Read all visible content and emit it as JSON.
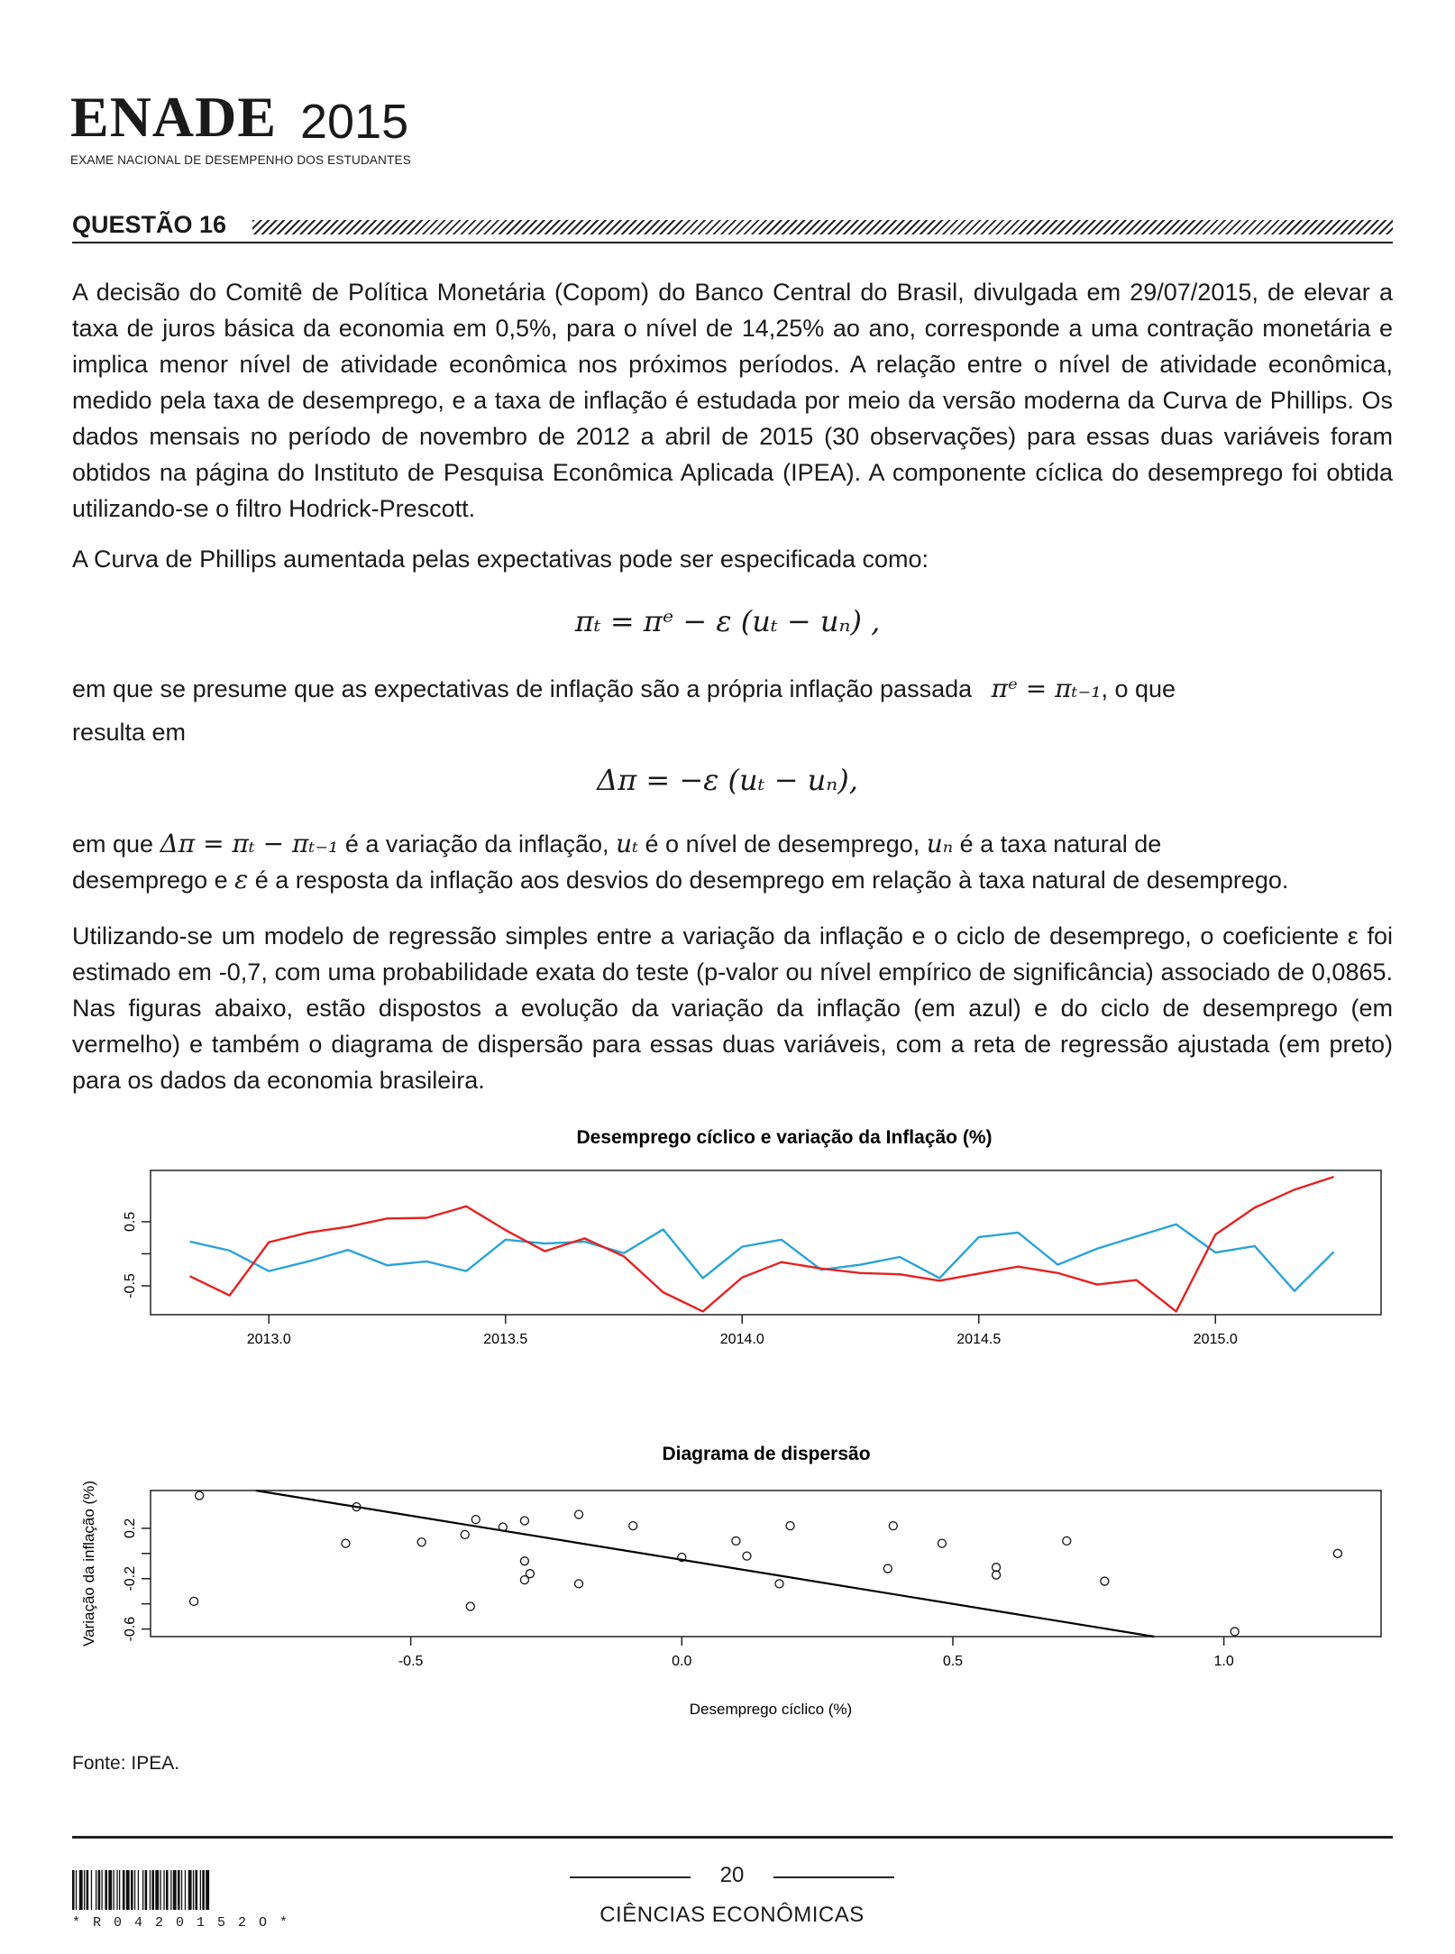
{
  "header": {
    "logo_main": "ENADE",
    "logo_year": "2015",
    "logo_subtitle": "EXAME NACIONAL DE DESEMPENHO DOS ESTUDANTES"
  },
  "question": {
    "title": "QUESTÃO 16",
    "p1": "A decisão do Comitê de Política Monetária (Copom) do Banco Central do Brasil, divulgada em 29/07/2015, de elevar a taxa de juros básica da economia em 0,5%, para o nível de 14,25% ao ano, corresponde a uma contração monetária e implica menor nível de atividade econômica nos próximos períodos. A relação entre o nível de atividade econômica, medido pela taxa de desemprego, e a taxa de inflação é estudada por meio da versão moderna da Curva de Phillips. Os dados mensais no período de novembro de 2012 a abril de 2015 (30 observações) para essas duas variáveis foram obtidos na página do Instituto de Pesquisa Econômica Aplicada (IPEA). A componente cíclica do desemprego foi obtida utilizando-se o filtro Hodrick-Prescott.",
    "p2": "A Curva de Phillips aumentada pelas expectativas pode ser especificada como:",
    "formula1": "πₜ = πᵉ − ε (uₜ − uₙ) ,",
    "p3_a": "em que se presume que as expectativas de inflação são a própria inflação passada",
    "formula_inline": "πᵉ = πₜ₋₁",
    "p3_b": ", o que",
    "p3_c": "resulta em",
    "formula2": "Δπ = −ε (uₜ − uₙ),",
    "p4_a": "em que",
    "p4_f1": "Δπ = πₜ − πₜ₋₁",
    "p4_b": "é a variação da inflação,",
    "p4_f2": "uₜ",
    "p4_c": "é o nível de desemprego,",
    "p4_f3": "uₙ",
    "p4_d": "é a taxa natural de",
    "p4_e": "desemprego e",
    "p4_f4": "ε",
    "p4_g": "é a resposta da inflação aos desvios do desemprego em relação à taxa natural de desemprego.",
    "p5": "Utilizando-se um modelo de regressão simples entre a variação da inflação e o ciclo de desemprego, o coeficiente ε foi estimado em -0,7, com uma probabilidade exata do teste (p-valor ou nível empírico de significância) associado de 0,0865. Nas figuras abaixo, estão dispostos a evolução da variação da inflação (em azul) e do ciclo de desemprego (em vermelho) e também o diagrama de dispersão para essas duas variáveis, com a reta de regressão ajustada (em preto) para os dados da economia brasileira.",
    "source": "Fonte: IPEA."
  },
  "chart_data": [
    {
      "type": "line",
      "title": "Desemprego cíclico e variação da Inflação (%)",
      "xlabel": "",
      "ylabel": "",
      "xlim": [
        2012.75,
        2015.35
      ],
      "ylim": [
        -0.95,
        1.3
      ],
      "x_ticks": [
        2013.0,
        2013.5,
        2014.0,
        2014.5,
        2015.0
      ],
      "x_tick_labels": [
        "2013.0",
        "2013.5",
        "2014.0",
        "2014.5",
        "2015.0"
      ],
      "y_ticks": [
        0.5,
        -0.5
      ],
      "y_tick_labels": [
        "0.5",
        "-0.5"
      ],
      "grid": false,
      "x": [
        2012.833,
        2012.917,
        2013.0,
        2013.083,
        2013.167,
        2013.25,
        2013.333,
        2013.417,
        2013.5,
        2013.583,
        2013.667,
        2013.75,
        2013.833,
        2013.917,
        2014.0,
        2014.083,
        2014.167,
        2014.25,
        2014.333,
        2014.417,
        2014.5,
        2014.583,
        2014.667,
        2014.75,
        2014.833,
        2014.917,
        2015.0,
        2015.083,
        2015.167,
        2015.25
      ],
      "series": [
        {
          "color": "#2aa3d6",
          "values": [
            0.19,
            0.05,
            -0.27,
            -0.12,
            0.06,
            -0.18,
            -0.12,
            -0.27,
            0.22,
            0.16,
            0.19,
            0.01,
            0.38,
            -0.38,
            0.11,
            0.22,
            -0.25,
            -0.17,
            -0.05,
            -0.38,
            0.26,
            0.33,
            -0.17,
            0.08,
            0.27,
            0.46,
            0.02,
            0.12,
            -0.58,
            0.03
          ]
        },
        {
          "color": "#e32222",
          "values": [
            -0.35,
            -0.65,
            0.18,
            0.33,
            0.42,
            0.55,
            0.56,
            0.74,
            0.37,
            0.04,
            0.24,
            -0.04,
            -0.6,
            -0.9,
            -0.37,
            -0.13,
            -0.23,
            -0.3,
            -0.32,
            -0.42,
            -0.31,
            -0.2,
            -0.3,
            -0.48,
            -0.41,
            -0.9,
            0.3,
            0.72,
            1.0,
            1.2
          ]
        }
      ]
    },
    {
      "type": "scatter",
      "title": "Diagrama de dispersão",
      "xlabel": "Desemprego cíclico (%)",
      "ylabel": "Variação da inflação (%)",
      "xlim": [
        -0.98,
        1.29
      ],
      "ylim": [
        -0.66,
        0.5
      ],
      "x_ticks": [
        -0.5,
        0.0,
        0.5,
        1.0
      ],
      "x_tick_labels": [
        "-0.5",
        "0.0",
        "0.5",
        "1.0"
      ],
      "y_ticks": [
        0.2,
        -0.2,
        -0.6
      ],
      "y_tick_labels": [
        "0.2",
        "-0.2",
        "-0.6"
      ],
      "grid": false,
      "points": [
        [
          -0.89,
          0.46
        ],
        [
          -0.9,
          -0.38
        ],
        [
          -0.6,
          0.37
        ],
        [
          -0.62,
          0.08
        ],
        [
          -0.48,
          0.09
        ],
        [
          -0.38,
          0.27
        ],
        [
          -0.4,
          0.15
        ],
        [
          -0.39,
          -0.42
        ],
        [
          -0.33,
          0.21
        ],
        [
          -0.29,
          0.26
        ],
        [
          -0.29,
          -0.06
        ],
        [
          -0.28,
          -0.16
        ],
        [
          -0.29,
          -0.21
        ],
        [
          -0.19,
          0.31
        ],
        [
          -0.19,
          -0.24
        ],
        [
          -0.09,
          0.22
        ],
        [
          0.0,
          -0.03
        ],
        [
          0.1,
          0.1
        ],
        [
          0.12,
          -0.02
        ],
        [
          0.18,
          -0.24
        ],
        [
          0.2,
          0.22
        ],
        [
          0.38,
          -0.12
        ],
        [
          0.39,
          0.22
        ],
        [
          0.48,
          0.08
        ],
        [
          0.58,
          -0.11
        ],
        [
          0.58,
          -0.17
        ],
        [
          0.71,
          0.1
        ],
        [
          0.78,
          -0.22
        ],
        [
          1.02,
          -0.62
        ],
        [
          1.21,
          0.0
        ]
      ],
      "fit_line": {
        "slope": -0.7,
        "intercept": -0.05,
        "color": "#000000"
      }
    }
  ],
  "footer": {
    "page_number": "20",
    "course": "CIÊNCIAS ECONÔMICAS",
    "barcode_text": "*R0420152O*"
  }
}
